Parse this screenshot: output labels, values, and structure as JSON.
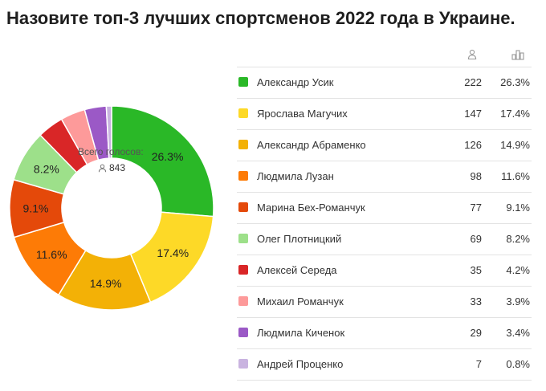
{
  "title": "Назовите топ-3 лучших спортсменов 2022 года в Украине.",
  "total": {
    "label": "Всего голосов:",
    "count": "843"
  },
  "table": {
    "count_icon": "user-icon",
    "percent_icon": "chart-bars-icon"
  },
  "chart_data": {
    "type": "pie",
    "donut": true,
    "categories": [
      "Александр Усик",
      "Ярослава Магучих",
      "Александр Абраменко",
      "Людмила Лузан",
      "Марина Бех-Романчук",
      "Олег Плотницкий",
      "Алексей Середа",
      "Михаил Романчук",
      "Людмила Киченок",
      "Андрей Проценко"
    ],
    "values": [
      222,
      147,
      126,
      98,
      77,
      69,
      35,
      33,
      29,
      7
    ],
    "counts_text": [
      "222",
      "147",
      "126",
      "98",
      "77",
      "69",
      "35",
      "33",
      "29",
      "7"
    ],
    "percents": [
      "26.3%",
      "17.4%",
      "14.9%",
      "11.6%",
      "9.1%",
      "8.2%",
      "4.2%",
      "3.9%",
      "3.4%",
      "0.8%"
    ],
    "slice_labels": [
      "26.3%",
      "17.4%",
      "14.9%",
      "11.6%",
      "9.1%",
      "8.2%",
      "",
      "",
      "",
      ""
    ],
    "colors": [
      "#2ab827",
      "#fdd927",
      "#f3b106",
      "#fd7b06",
      "#e4490a",
      "#9de08a",
      "#d92627",
      "#fd9a9a",
      "#9b59c6",
      "#c9b3e0"
    ],
    "legend_position": "right"
  }
}
